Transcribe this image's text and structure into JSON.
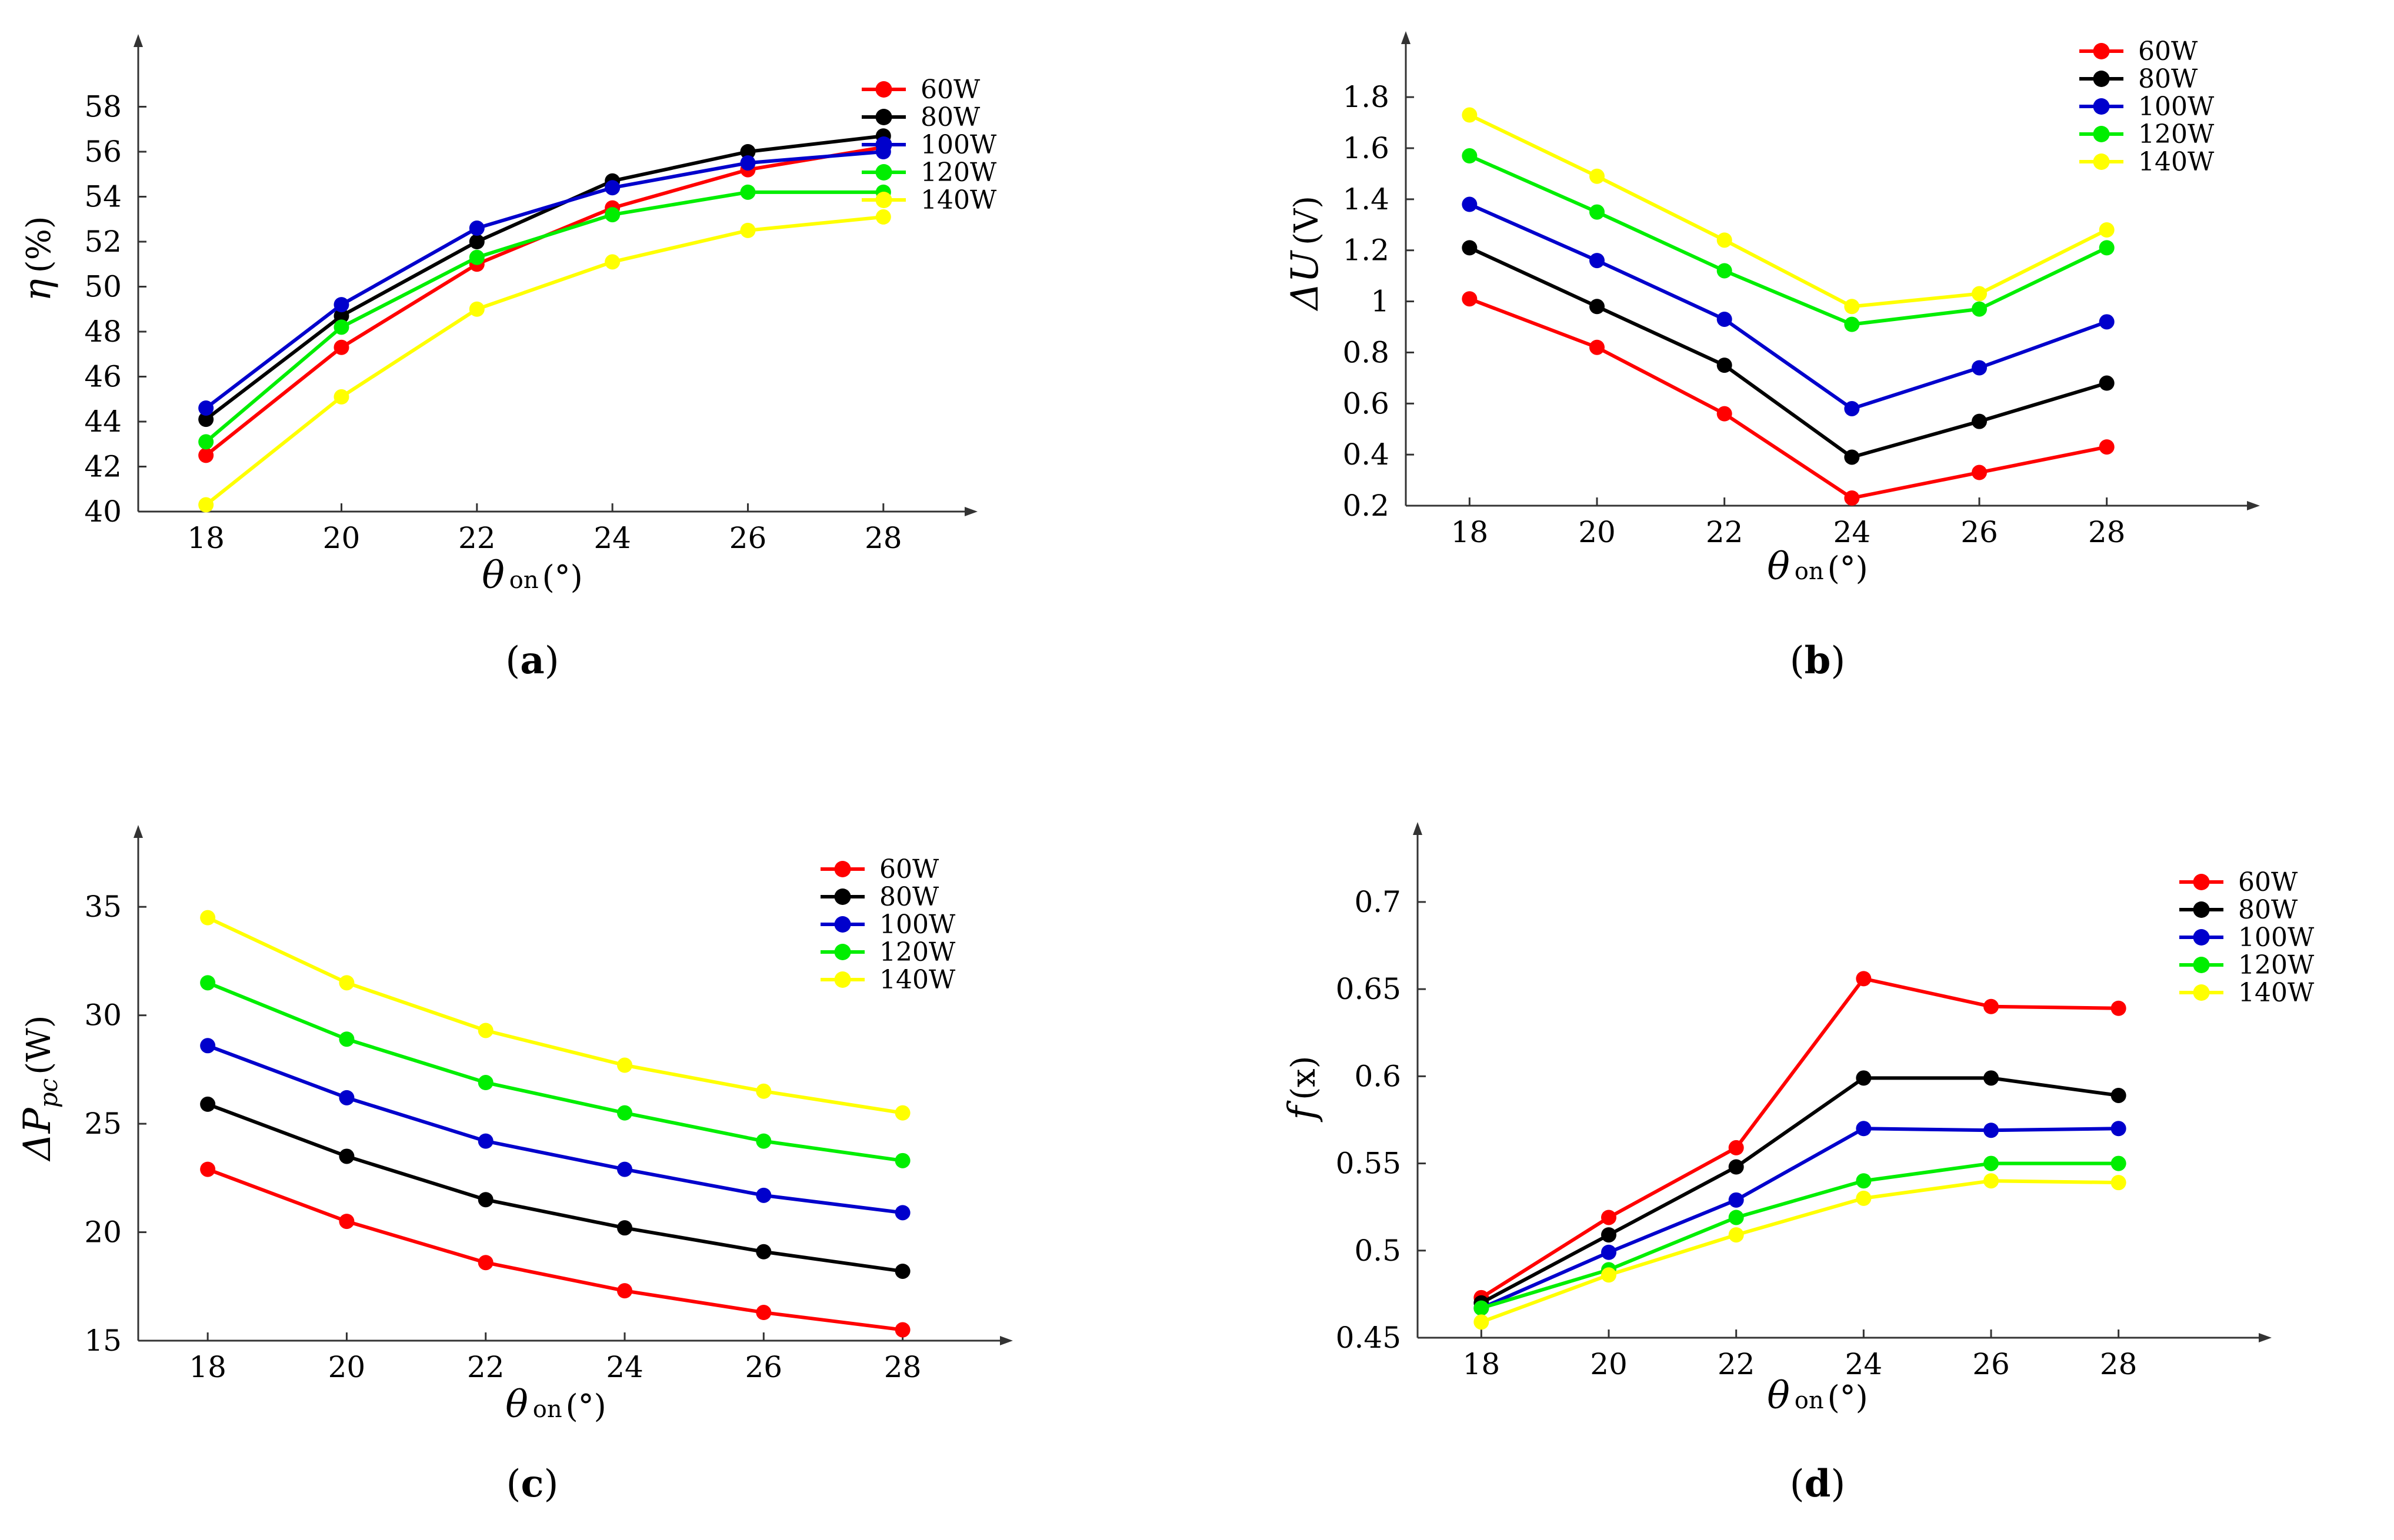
{
  "series_colors": {
    "60W": "#ff0000",
    "80W": "#000000",
    "100W": "#0000cc",
    "120W": "#00ee00",
    "140W": "#ffff00"
  },
  "chart_data": [
    {
      "id": "a",
      "type": "line",
      "panel_label": [
        "(",
        "a",
        ")"
      ],
      "xlabel": {
        "main": "θ",
        "sub": "on",
        "unit": "(°)"
      },
      "ylabel": {
        "main": "η",
        "unit": "(%)"
      },
      "x": [
        18,
        20,
        22,
        24,
        26,
        28
      ],
      "xticks": [
        "18",
        "20",
        "22",
        "24",
        "26",
        "28"
      ],
      "xlim": [
        17,
        29.2
      ],
      "ylim": [
        40,
        60
      ],
      "yticks": [
        "40",
        "42",
        "44",
        "46",
        "48",
        "50",
        "52",
        "54",
        "56",
        "58"
      ],
      "legend_position": "top-right",
      "series": [
        {
          "name": "60W",
          "values": [
            42.5,
            47.3,
            51.0,
            53.5,
            55.2,
            56.2
          ]
        },
        {
          "name": "80W",
          "values": [
            44.1,
            48.7,
            52.0,
            54.7,
            56.0,
            56.7
          ]
        },
        {
          "name": "100W",
          "values": [
            44.6,
            49.2,
            52.6,
            54.4,
            55.5,
            56.0
          ]
        },
        {
          "name": "120W",
          "values": [
            43.1,
            48.2,
            51.3,
            53.2,
            54.2,
            54.2
          ]
        },
        {
          "name": "140W",
          "values": [
            40.3,
            45.1,
            49.0,
            51.1,
            52.5,
            53.1
          ]
        }
      ]
    },
    {
      "id": "b",
      "type": "line",
      "panel_label": [
        "(",
        "b",
        ")"
      ],
      "xlabel": {
        "main": "θ",
        "sub": "on",
        "unit": "(°)"
      },
      "ylabel": {
        "main": "ΔU",
        "unit": "(V)"
      },
      "x": [
        18,
        20,
        22,
        24,
        26,
        28
      ],
      "xticks": [
        "18",
        "20",
        "22",
        "24",
        "26",
        "28"
      ],
      "xlim": [
        17,
        30.2
      ],
      "ylim": [
        0.2,
        1.95
      ],
      "yticks": [
        "0.2",
        "0.4",
        "0.6",
        "0.8",
        "1",
        "1.2",
        "1.4",
        "1.6",
        "1.8"
      ],
      "legend_position": "top-right",
      "series": [
        {
          "name": "60W",
          "values": [
            1.01,
            0.82,
            0.56,
            0.23,
            0.33,
            0.43
          ]
        },
        {
          "name": "80W",
          "values": [
            1.21,
            0.98,
            0.75,
            0.39,
            0.53,
            0.68
          ]
        },
        {
          "name": "100W",
          "values": [
            1.38,
            1.16,
            0.93,
            0.58,
            0.74,
            0.92
          ]
        },
        {
          "name": "120W",
          "values": [
            1.57,
            1.35,
            1.12,
            0.91,
            0.97,
            1.21
          ]
        },
        {
          "name": "140W",
          "values": [
            1.73,
            1.49,
            1.24,
            0.98,
            1.03,
            1.28
          ]
        }
      ]
    },
    {
      "id": "c",
      "type": "line",
      "panel_label": [
        "(",
        "c",
        ")"
      ],
      "xlabel": {
        "main": "θ",
        "sub": "on",
        "unit": "(°)"
      },
      "ylabel": {
        "main": "ΔP",
        "sub": "pc",
        "unit": "(W)"
      },
      "x": [
        18,
        20,
        22,
        24,
        26,
        28
      ],
      "xticks": [
        "18",
        "20",
        "22",
        "24",
        "26",
        "28"
      ],
      "xlim": [
        17,
        29.4
      ],
      "ylim": [
        15,
        37.5
      ],
      "yticks": [
        "15",
        "20",
        "25",
        "30",
        "35"
      ],
      "legend_position": "top-right",
      "series": [
        {
          "name": "60W",
          "values": [
            22.9,
            20.5,
            18.6,
            17.3,
            16.3,
            15.5
          ]
        },
        {
          "name": "80W",
          "values": [
            25.9,
            23.5,
            21.5,
            20.2,
            19.1,
            18.2
          ]
        },
        {
          "name": "100W",
          "values": [
            28.6,
            26.2,
            24.2,
            22.9,
            21.7,
            20.9
          ]
        },
        {
          "name": "120W",
          "values": [
            31.5,
            28.9,
            26.9,
            25.5,
            24.2,
            23.3
          ]
        },
        {
          "name": "140W",
          "values": [
            34.5,
            31.5,
            29.3,
            27.7,
            26.5,
            25.5
          ]
        }
      ]
    },
    {
      "id": "d",
      "type": "line",
      "panel_label": [
        "(",
        "d",
        ")"
      ],
      "xlabel": {
        "main": "θ",
        "sub": "on",
        "unit": "(°)"
      },
      "ylabel": {
        "main": "f",
        "unit": "(x)"
      },
      "x": [
        18,
        20,
        22,
        24,
        26,
        28
      ],
      "xticks": [
        "18",
        "20",
        "22",
        "24",
        "26",
        "28"
      ],
      "xlim": [
        17,
        30.2
      ],
      "ylim": [
        0.45,
        0.73
      ],
      "yticks": [
        "0.45",
        "0.5",
        "0.55",
        "0.6",
        "0.65",
        "0.7"
      ],
      "legend_position": "top-right",
      "series": [
        {
          "name": "60W",
          "values": [
            0.473,
            0.519,
            0.559,
            0.656,
            0.64,
            0.639
          ]
        },
        {
          "name": "80W",
          "values": [
            0.47,
            0.509,
            0.548,
            0.599,
            0.599,
            0.589
          ]
        },
        {
          "name": "100W",
          "values": [
            0.467,
            0.499,
            0.529,
            0.57,
            0.569,
            0.57
          ]
        },
        {
          "name": "120W",
          "values": [
            0.467,
            0.489,
            0.519,
            0.54,
            0.55,
            0.55
          ]
        },
        {
          "name": "140W",
          "values": [
            0.459,
            0.486,
            0.509,
            0.53,
            0.54,
            0.539
          ]
        }
      ]
    }
  ]
}
